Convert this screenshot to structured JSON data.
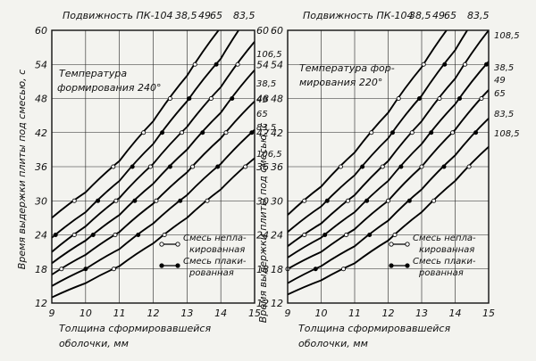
{
  "chart_data": [
    {
      "type": "line",
      "header": "Подвижность ПК-104",
      "header_values": [
        "38,5",
        "49",
        "65",
        "83,5"
      ],
      "annotation": [
        "Температура",
        "формирования 240°"
      ],
      "ylabel": "Время выдержки плиты под смесью, с",
      "xlabel": [
        "Толщина сформировавшейся",
        "оболочки, мм"
      ],
      "xlim": [
        9,
        15
      ],
      "ylim": [
        12,
        60
      ],
      "xticks": [
        9,
        10,
        11,
        12,
        13,
        14,
        15
      ],
      "xtick_labels": [
        "9",
        "10",
        "11",
        "12",
        "13",
        "14",
        "15"
      ],
      "yticks": [
        12,
        18,
        24,
        30,
        36,
        42,
        48,
        54,
        60
      ],
      "ytick_labels": [
        "12",
        "18",
        "24",
        "30",
        "36",
        "42",
        "48",
        "54",
        "60"
      ],
      "grid": true,
      "legend": {
        "placement": "bottom-right",
        "entries": [
          "Смесь непла-",
          "кированная",
          "Смесь плаки-",
          "рованная"
        ]
      },
      "right_labels": [
        "106,5",
        "38,5",
        "49",
        "65",
        "83,5",
        "106,5"
      ],
      "series": [
        {
          "x": [
            9,
            10,
            11,
            12,
            13,
            14,
            15
          ],
          "y": [
            27.0,
            31.5,
            37.0,
            44.0,
            52.0,
            60.5,
            70.0
          ]
        },
        {
          "x": [
            9,
            10,
            11,
            12,
            13,
            14,
            15
          ],
          "y": [
            23.5,
            28.0,
            33.5,
            40.0,
            47.5,
            55.0,
            64.0
          ]
        },
        {
          "x": [
            9,
            10,
            11,
            12,
            13,
            14,
            15
          ],
          "y": [
            21.0,
            25.5,
            30.5,
            36.5,
            43.0,
            50.0,
            58.0
          ]
        },
        {
          "x": [
            9,
            10,
            11,
            12,
            13,
            14,
            15
          ],
          "y": [
            19.0,
            23.0,
            27.5,
            33.0,
            39.0,
            45.5,
            53.0
          ]
        },
        {
          "x": [
            9,
            10,
            11,
            12,
            13,
            14,
            15
          ],
          "y": [
            17.0,
            20.5,
            24.5,
            29.5,
            35.0,
            41.0,
            47.5
          ]
        },
        {
          "x": [
            9,
            10,
            11,
            12,
            13,
            14,
            15
          ],
          "y": [
            15.0,
            18.0,
            21.5,
            26.0,
            31.0,
            36.5,
            42.5
          ]
        },
        {
          "x": [
            9,
            10,
            11,
            12,
            13,
            14,
            15
          ],
          "y": [
            13.0,
            15.5,
            18.5,
            22.5,
            27.0,
            32.0,
            37.5
          ]
        }
      ]
    },
    {
      "type": "line",
      "header": "Подвижность ПК-104",
      "header_values": [
        "38,5",
        "49",
        "65",
        "83,5"
      ],
      "annotation": [
        "Температура фор-",
        "мирования 220°"
      ],
      "ylabel": "Время выдержки плиты под смесью, с",
      "xlabel": [
        "Толщина сформировавшейся",
        "оболочки, мм"
      ],
      "xlim": [
        9,
        15
      ],
      "ylim": [
        12,
        60
      ],
      "xticks": [
        9,
        10,
        11,
        12,
        13,
        14,
        15
      ],
      "xtick_labels": [
        "9",
        "10",
        "11",
        "12",
        "13",
        "14",
        "15"
      ],
      "yticks": [
        12,
        18,
        24,
        30,
        36,
        42,
        48,
        54,
        60
      ],
      "ytick_labels": [
        "12",
        "18",
        "24",
        "30",
        "36",
        "42",
        "48",
        "54",
        "60"
      ],
      "grid": true,
      "legend": {
        "placement": "bottom-right",
        "entries": [
          "Смесь непла-",
          "кированная",
          "Смесь плаки-",
          "рованная"
        ]
      },
      "right_labels": [
        "108,5",
        "38,5",
        "49",
        "65",
        "83,5",
        "108,5"
      ],
      "series": [
        {
          "x": [
            9,
            10,
            11,
            12,
            13,
            14,
            15
          ],
          "y": [
            27.5,
            32.5,
            38.5,
            45.5,
            53.5,
            62.0,
            71.5
          ]
        },
        {
          "x": [
            9,
            10,
            11,
            12,
            13,
            14,
            15
          ],
          "y": [
            24.5,
            29.0,
            34.5,
            41.0,
            48.5,
            56.5,
            65.5
          ]
        },
        {
          "x": [
            9,
            10,
            11,
            12,
            13,
            14,
            15
          ],
          "y": [
            22.0,
            26.0,
            31.0,
            37.0,
            44.0,
            51.5,
            60.0
          ]
        },
        {
          "x": [
            9,
            10,
            11,
            12,
            13,
            14,
            15
          ],
          "y": [
            20.0,
            23.5,
            28.0,
            33.5,
            40.0,
            47.0,
            54.5
          ]
        },
        {
          "x": [
            9,
            10,
            11,
            12,
            13,
            14,
            15
          ],
          "y": [
            18.0,
            21.0,
            25.0,
            30.0,
            36.0,
            42.5,
            49.5
          ]
        },
        {
          "x": [
            9,
            10,
            11,
            12,
            13,
            14,
            15
          ],
          "y": [
            15.5,
            18.5,
            22.0,
            26.5,
            32.0,
            38.0,
            44.5
          ]
        },
        {
          "x": [
            9,
            10,
            11,
            12,
            13,
            14,
            15
          ],
          "y": [
            13.5,
            16.0,
            19.0,
            23.0,
            28.0,
            33.5,
            39.5
          ]
        }
      ]
    }
  ]
}
